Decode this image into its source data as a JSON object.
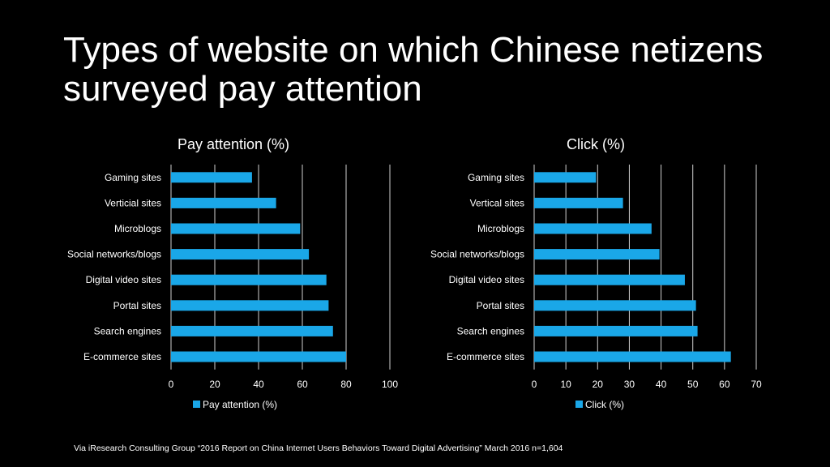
{
  "page": {
    "title": "Types of website on which Chinese netizens surveyed pay attention",
    "source": "Via iResearch Consulting Group “2016 Report on China Internet Users Behaviors Toward Digital Advertising” March 2016 n=1,604"
  },
  "colors": {
    "bar": "#1aa7e8",
    "grid": "#d0d0d0",
    "background": "#000000",
    "text": "#ffffff"
  },
  "chart_data": [
    {
      "type": "bar",
      "orientation": "horizontal",
      "title": "Pay attention (%)",
      "categories": [
        "Gaming sites",
        "Verticial sites",
        "Microblogs",
        "Social networks/blogs",
        "Digital video sites",
        "Portal sites",
        "Search engines",
        "E-commerce sites"
      ],
      "series": [
        {
          "name": "Pay attention (%)",
          "values": [
            37,
            48,
            59,
            63,
            71,
            72,
            74,
            80
          ]
        }
      ],
      "xlim": [
        0,
        100
      ],
      "ticks": [
        0,
        20,
        40,
        60,
        80,
        100
      ],
      "grid": true,
      "legend": "bottom"
    },
    {
      "type": "bar",
      "orientation": "horizontal",
      "title": "Click (%)",
      "categories": [
        "Gaming sites",
        "Vertical sites",
        "Microblogs",
        "Social networks/blogs",
        "Digital video sites",
        "Portal sites",
        "Search engines",
        "E-commerce sites"
      ],
      "series": [
        {
          "name": "Click (%)",
          "values": [
            19.5,
            28,
            37,
            39.5,
            47.5,
            51,
            51.5,
            62
          ]
        }
      ],
      "xlim": [
        0,
        70
      ],
      "ticks": [
        0,
        10,
        20,
        30,
        40,
        50,
        60,
        70
      ],
      "grid": true,
      "legend": "bottom"
    }
  ]
}
